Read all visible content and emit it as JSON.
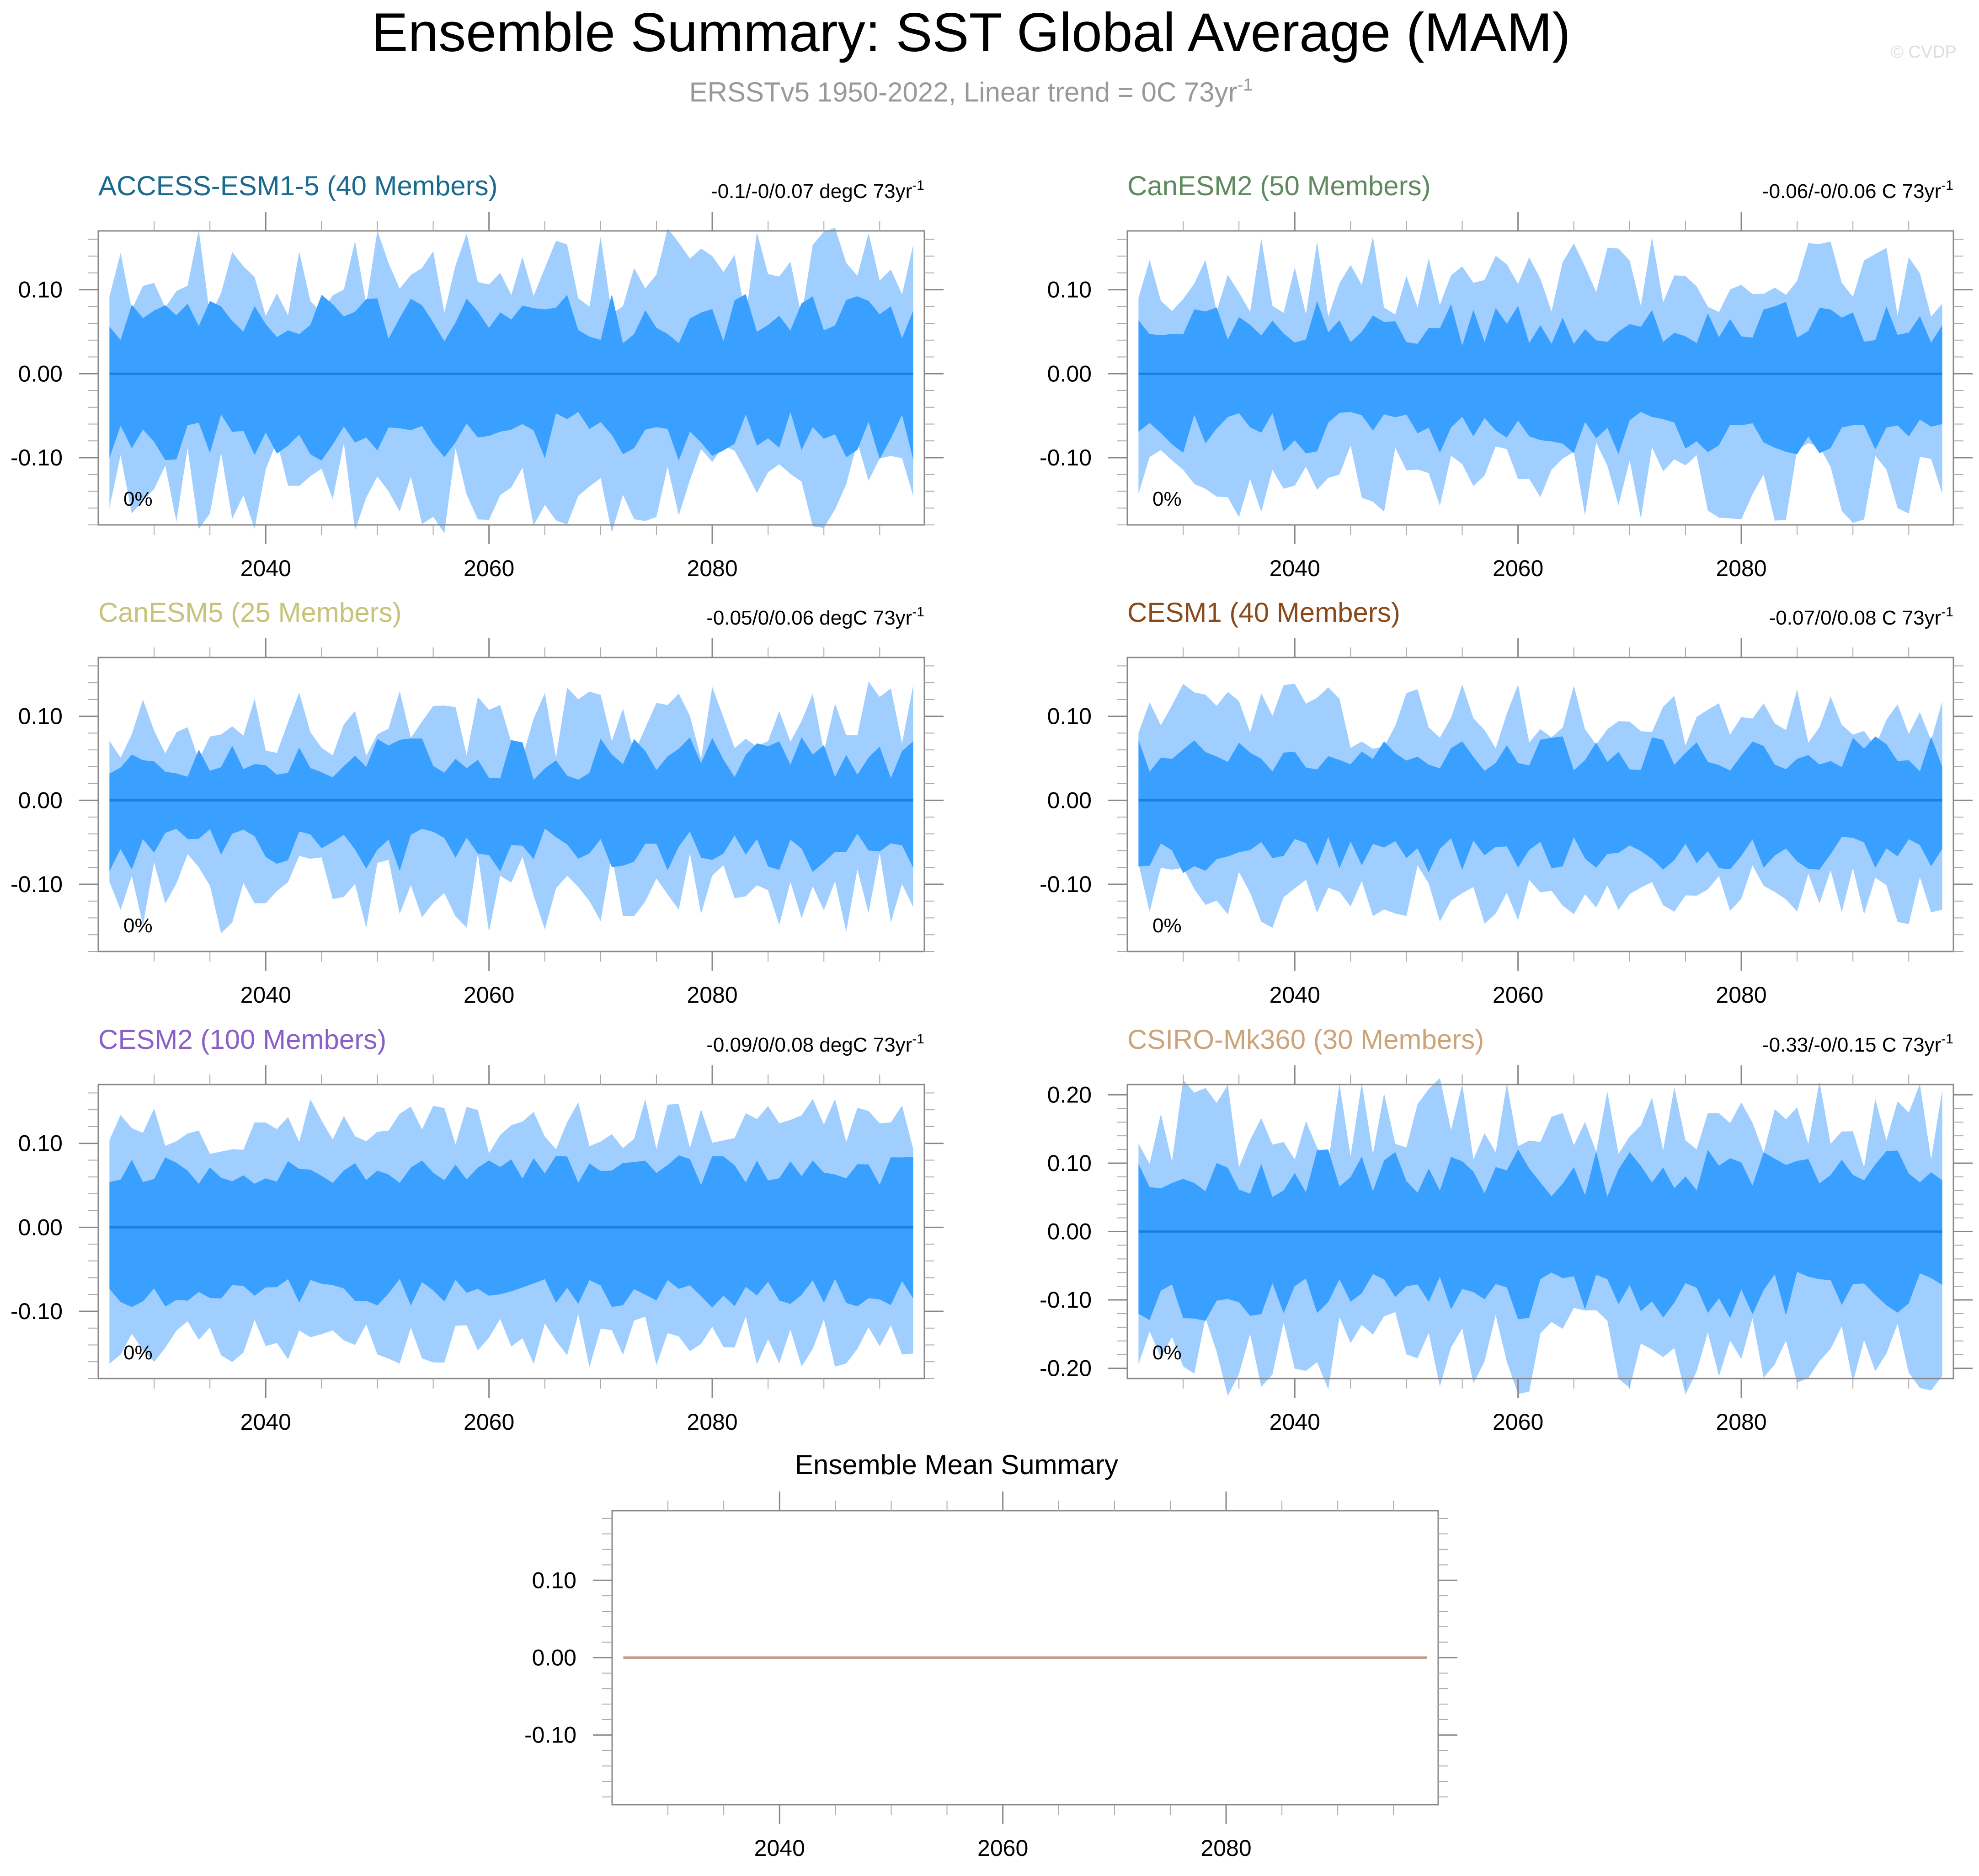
{
  "title": "Ensemble Summary: SST Global Average (MAM)",
  "subtitle": "ERSSTv5 1950-2022, Linear trend = 0C 73yr",
  "subtitle_sup": "-1",
  "watermark": "© CVDP",
  "colors": {
    "outer_band": "#a0cfff",
    "inner_band": "#3aa0ff",
    "mean_line": "#1a7fe0",
    "summary_line": "#c4a08a"
  },
  "chart_data": [
    {
      "type": "area",
      "name": "ACCESS-ESM1-5 (40 Members)",
      "title_color": "#1a6a8f",
      "trend": "-0.1/-0/0.07 degC 73yr",
      "trend_sup": "-1",
      "pct_label": "0%",
      "x_start": 2026,
      "x_end": 2098,
      "xticks": [
        2040,
        2060,
        2080
      ],
      "ylim": [
        -0.18,
        0.17
      ],
      "yticks": [
        -0.1,
        0.0,
        0.1
      ],
      "ytick_labels": [
        "-0.10",
        "0.00",
        "0.10"
      ],
      "seed": 11,
      "outer_amp": 0.12,
      "inner_amp": 0.065,
      "noise": 0.025
    },
    {
      "type": "area",
      "name": "CanESM2 (50 Members)",
      "title_color": "#5e8a5e",
      "trend": "-0.06/-0/0.06 C 73yr",
      "trend_sup": "-1",
      "pct_label": "0%",
      "x_start": 2026,
      "x_end": 2098,
      "xticks": [
        2040,
        2060,
        2080
      ],
      "ylim": [
        -0.18,
        0.17
      ],
      "yticks": [
        -0.1,
        0.0,
        0.1
      ],
      "ytick_labels": [
        "-0.10",
        "0.00",
        "0.10"
      ],
      "seed": 23,
      "outer_amp": 0.115,
      "inner_amp": 0.06,
      "noise": 0.022
    },
    {
      "type": "area",
      "name": "CanESM5 (25 Members)",
      "title_color": "#c8c27a",
      "trend": "-0.05/0/0.06 degC 73yr",
      "trend_sup": "-1",
      "pct_label": "0%",
      "x_start": 2026,
      "x_end": 2098,
      "xticks": [
        2040,
        2060,
        2080
      ],
      "ylim": [
        -0.18,
        0.17
      ],
      "yticks": [
        -0.1,
        0.0,
        0.1
      ],
      "ytick_labels": [
        "-0.10",
        "0.00",
        "0.10"
      ],
      "seed": 37,
      "outer_amp": 0.095,
      "inner_amp": 0.05,
      "noise": 0.022
    },
    {
      "type": "area",
      "name": "CESM1 (40 Members)",
      "title_color": "#8a4a1a",
      "trend": "-0.07/0/0.08 C 73yr",
      "trend_sup": "-1",
      "pct_label": "0%",
      "x_start": 2026,
      "x_end": 2098,
      "xticks": [
        2040,
        2060,
        2080
      ],
      "ylim": [
        -0.18,
        0.17
      ],
      "yticks": [
        -0.1,
        0.0,
        0.1
      ],
      "ytick_labels": [
        "-0.10",
        "0.00",
        "0.10"
      ],
      "seed": 41,
      "outer_amp": 0.1,
      "inner_amp": 0.055,
      "noise": 0.018
    },
    {
      "type": "area",
      "name": "CESM2 (100 Members)",
      "title_color": "#8a5fc8",
      "trend": "-0.09/0/0.08 degC 73yr",
      "trend_sup": "-1",
      "pct_label": "0%",
      "x_start": 2026,
      "x_end": 2098,
      "xticks": [
        2040,
        2060,
        2080
      ],
      "ylim": [
        -0.18,
        0.17
      ],
      "yticks": [
        -0.1,
        0.0,
        0.1
      ],
      "ytick_labels": [
        "-0.10",
        "0.00",
        "0.10"
      ],
      "seed": 53,
      "outer_amp": 0.12,
      "inner_amp": 0.068,
      "noise": 0.015
    },
    {
      "type": "area",
      "name": "CSIRO-Mk360 (30 Members)",
      "title_color": "#cda47a",
      "trend": "-0.33/-0/0.15 C 73yr",
      "trend_sup": "-1",
      "pct_label": "0%",
      "x_start": 2026,
      "x_end": 2098,
      "xticks": [
        2040,
        2060,
        2080
      ],
      "ylim": [
        -0.215,
        0.215
      ],
      "yticks": [
        -0.2,
        -0.1,
        0.0,
        0.1,
        0.2
      ],
      "ytick_labels": [
        "-0.20",
        "-0.10",
        "0.00",
        "0.10",
        "0.20"
      ],
      "seed": 67,
      "outer_amp": 0.16,
      "inner_amp": 0.085,
      "noise": 0.03
    },
    {
      "type": "line",
      "name": "Ensemble Mean Summary",
      "title_color": "#000000",
      "x_start": 2026,
      "x_end": 2098,
      "xticks": [
        2040,
        2060,
        2080
      ],
      "ylim": [
        -0.19,
        0.19
      ],
      "yticks": [
        -0.1,
        0.0,
        0.1
      ],
      "ytick_labels": [
        "-0.10",
        "0.00",
        "0.10"
      ],
      "values_constant": 0.0
    }
  ]
}
